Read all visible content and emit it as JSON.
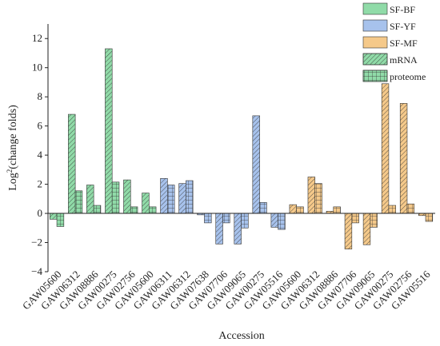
{
  "chart_data": {
    "type": "bar",
    "xlabel": "Accession",
    "ylabel": "Log²(change folds)",
    "ylabel_main": "Log",
    "ylabel_sup": "2",
    "ylabel_rest": "(change folds)",
    "ylim": [
      -4,
      13
    ],
    "yticks": [
      -4,
      -2,
      0,
      2,
      4,
      6,
      8,
      10,
      12
    ],
    "grid": false,
    "legend_position": "top-right",
    "groups": [
      {
        "name": "SF-BF",
        "color": "#90dba8",
        "categories": [
          "GAW05600",
          "GAW06312",
          "GAW08886",
          "GAW00275",
          "GAW02756",
          "GAW05600"
        ]
      },
      {
        "name": "SF-YF",
        "color": "#a7c2ec",
        "categories": [
          "GAW06311",
          "GAW06312",
          "GAW07638",
          "GAW07706",
          "GAW09065",
          "GAW00275",
          "GAW05516"
        ]
      },
      {
        "name": "SF-MF",
        "color": "#f5c98a",
        "categories": [
          "GAW05600",
          "GAW06312",
          "GAW08886",
          "GAW07706",
          "GAW09065",
          "GAW00275",
          "GAW02756",
          "GAW05516"
        ]
      }
    ],
    "categories": [
      "GAW05600",
      "GAW06312",
      "GAW08886",
      "GAW00275",
      "GAW02756",
      "GAW05600",
      "GAW06311",
      "GAW06312",
      "GAW07638",
      "GAW07706",
      "GAW09065",
      "GAW00275",
      "GAW05516",
      "GAW05600",
      "GAW06312",
      "GAW08886",
      "GAW07706",
      "GAW09065",
      "GAW00275",
      "GAW02756",
      "GAW05516"
    ],
    "series": [
      {
        "name": "mRNA",
        "pattern": "diagonal",
        "values": [
          -0.4,
          6.8,
          1.95,
          11.3,
          2.3,
          1.4,
          2.4,
          2.05,
          -0.1,
          -2.1,
          -2.1,
          6.7,
          -0.95,
          0.6,
          2.5,
          0.15,
          -2.45,
          -2.15,
          8.9,
          7.55,
          -0.15
        ]
      },
      {
        "name": "proteome",
        "pattern": "grid",
        "values": [
          -0.9,
          1.55,
          0.55,
          2.15,
          0.45,
          0.45,
          1.95,
          2.25,
          -0.65,
          -0.65,
          -1.0,
          0.75,
          -1.1,
          0.45,
          2.05,
          0.45,
          -0.65,
          -0.95,
          0.55,
          0.65,
          -0.55
        ]
      }
    ],
    "legend": [
      {
        "label": "SF-BF",
        "swatch": "#90dba8",
        "pattern": "none"
      },
      {
        "label": "SF-YF",
        "swatch": "#a7c2ec",
        "pattern": "none"
      },
      {
        "label": "SF-MF",
        "swatch": "#f5c98a",
        "pattern": "none"
      },
      {
        "label": "mRNA",
        "swatch": "#90dba8",
        "pattern": "diagonal"
      },
      {
        "label": "proteome",
        "swatch": "#90dba8",
        "pattern": "grid"
      }
    ]
  }
}
